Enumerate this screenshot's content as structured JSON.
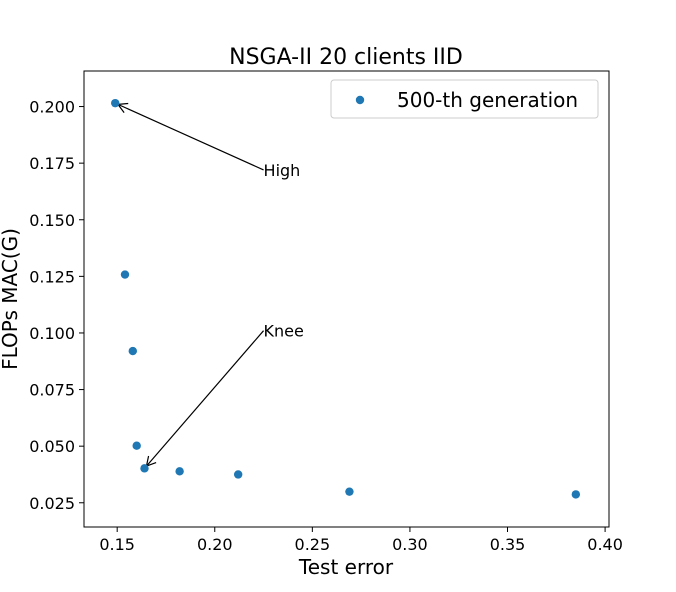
{
  "chart_data": {
    "type": "scatter",
    "title": "NSGA-II 20 clients IID",
    "xlabel": "Test error",
    "ylabel": "FLOPs MAC(G)",
    "xlim": [
      0.133,
      0.402
    ],
    "ylim": [
      0.0143,
      0.2157
    ],
    "xticks": [
      "0.15",
      "0.20",
      "0.25",
      "0.30",
      "0.35",
      "0.40"
    ],
    "yticks": [
      "0.025",
      "0.050",
      "0.075",
      "0.100",
      "0.125",
      "0.150",
      "0.175",
      "0.200"
    ],
    "grid": false,
    "legend_position": "top-right",
    "color": "#1f77b4",
    "series": [
      {
        "name": "500-th generation",
        "points": [
          {
            "x": 0.149,
            "y": 0.2015
          },
          {
            "x": 0.154,
            "y": 0.1258
          },
          {
            "x": 0.158,
            "y": 0.092
          },
          {
            "x": 0.16,
            "y": 0.0502
          },
          {
            "x": 0.164,
            "y": 0.0402
          },
          {
            "x": 0.182,
            "y": 0.0389
          },
          {
            "x": 0.212,
            "y": 0.0375
          },
          {
            "x": 0.269,
            "y": 0.0299
          },
          {
            "x": 0.385,
            "y": 0.0287
          }
        ]
      }
    ],
    "annotations": [
      {
        "text": "High",
        "point": {
          "x": 0.149,
          "y": 0.2015
        },
        "text_at": {
          "x": 0.225,
          "y": 0.172
        }
      },
      {
        "text": "Knee",
        "point": {
          "x": 0.164,
          "y": 0.0402
        },
        "text_at": {
          "x": 0.225,
          "y": 0.101
        }
      }
    ]
  }
}
